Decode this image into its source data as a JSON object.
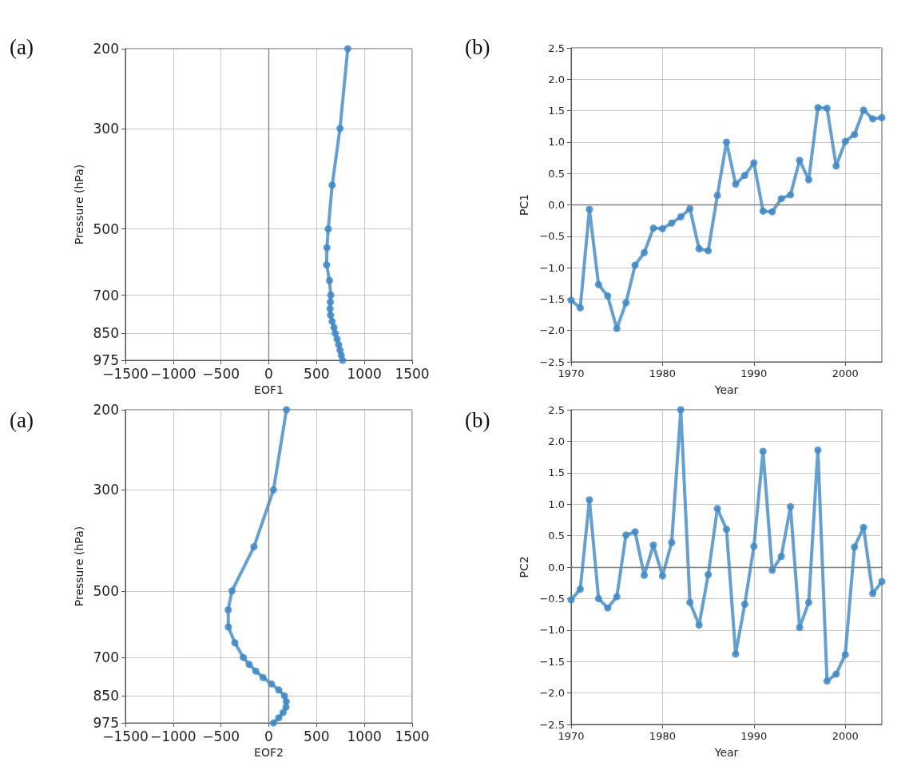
{
  "chart_data": [
    {
      "type": "line",
      "xlabel": "EOF1",
      "ylabel": "Pressure (hPa)",
      "annotations": [
        "(a)"
      ],
      "log": "y",
      "grid": true,
      "marker": "circle",
      "line_style": "solid",
      "xlim": [
        -1500,
        1500
      ],
      "xticks": [
        {
          "value": -1500,
          "label": "−1500"
        },
        {
          "value": -1000,
          "label": "−1000"
        },
        {
          "value": -500,
          "label": "−500"
        },
        0,
        500,
        1000,
        1500
      ],
      "ylim": [
        975,
        200
      ],
      "yticks": [
        200,
        300,
        500,
        700,
        850,
        975
      ],
      "ref_lines": [
        {
          "axis": "x",
          "value": 0,
          "color": "#808080"
        }
      ],
      "series": [
        {
          "color": "#3f88c5",
          "x": [
            826,
            745,
            663,
            622,
            608,
            605,
            635,
            649,
            644,
            641,
            646,
            663,
            682,
            695,
            714,
            731,
            745,
            758,
            772
          ],
          "values": [
            200,
            300,
            400,
            500,
            550,
            600,
            650,
            700,
            725,
            750,
            775,
            800,
            825,
            850,
            875,
            900,
            925,
            950,
            975
          ]
        }
      ]
    },
    {
      "type": "line",
      "xlabel": "Year",
      "ylabel": "PC1",
      "annotations": [
        "(b)"
      ],
      "grid": true,
      "marker": "circle",
      "line_style": "solid",
      "xlim": [
        1970,
        2004
      ],
      "xticks": [
        1970,
        1980,
        1990,
        2000
      ],
      "ylim": [
        -2.5,
        2.5
      ],
      "yticks": [
        {
          "value": -2.5,
          "label": "−2.5"
        },
        {
          "value": -2,
          "label": "−2.0"
        },
        {
          "value": -1.5,
          "label": "−1.5"
        },
        {
          "value": -1,
          "label": "−1.0"
        },
        {
          "value": -0.5,
          "label": "−0.5"
        },
        {
          "value": 0,
          "label": "0.0"
        },
        {
          "value": 0.5,
          "label": "0.5"
        },
        {
          "value": 1,
          "label": "1.0"
        },
        {
          "value": 1.5,
          "label": "1.5"
        },
        {
          "value": 2,
          "label": "2.0"
        },
        {
          "value": 2.5,
          "label": "2.5"
        }
      ],
      "ref_lines": [
        {
          "axis": "y",
          "value": 0,
          "color": "#808080"
        }
      ],
      "series": [
        {
          "color": "#3f88c5",
          "x": [
            1970,
            1971,
            1972,
            1973,
            1974,
            1975,
            1976,
            1977,
            1978,
            1979,
            1980,
            1981,
            1982,
            1983,
            1984,
            1985,
            1986,
            1987,
            1988,
            1989,
            1990,
            1991,
            1992,
            1993,
            1994,
            1995,
            1996,
            1997,
            1998,
            1999,
            2000,
            2001,
            2002,
            2003,
            2004
          ],
          "values": [
            -1.52,
            -1.64,
            -0.07,
            -1.27,
            -1.45,
            -1.97,
            -1.56,
            -0.96,
            -0.76,
            -0.37,
            -0.38,
            -0.29,
            -0.19,
            -0.06,
            -0.7,
            -0.73,
            0.15,
            1.0,
            0.33,
            0.47,
            0.67,
            -0.1,
            -0.11,
            0.1,
            0.16,
            0.71,
            0.4,
            1.55,
            1.54,
            0.62,
            1.01,
            1.12,
            1.51,
            1.37,
            1.39
          ]
        }
      ]
    },
    {
      "type": "line",
      "xlabel": "EOF2",
      "ylabel": "Pressure (hPa)",
      "annotations": [
        "(a)"
      ],
      "log": "y",
      "grid": true,
      "marker": "circle",
      "line_style": "solid",
      "xlim": [
        -1500,
        1500
      ],
      "xticks": [
        {
          "value": -1500,
          "label": "−1500"
        },
        {
          "value": -1000,
          "label": "−1000"
        },
        {
          "value": -500,
          "label": "−500"
        },
        0,
        500,
        1000,
        1500
      ],
      "ylim": [
        975,
        200
      ],
      "yticks": [
        200,
        300,
        500,
        700,
        850,
        975
      ],
      "ref_lines": [
        {
          "axis": "x",
          "value": 0,
          "color": "#808080"
        }
      ],
      "series": [
        {
          "color": "#3f88c5",
          "x": [
            185,
            49,
            -155,
            -385,
            -425,
            -423,
            -355,
            -267,
            -205,
            -136,
            -60,
            27,
            104,
            164,
            183,
            180,
            150,
            104,
            49
          ],
          "values": [
            200,
            300,
            400,
            500,
            550,
            600,
            650,
            700,
            725,
            750,
            775,
            800,
            825,
            850,
            875,
            900,
            925,
            950,
            975
          ]
        }
      ]
    },
    {
      "type": "line",
      "xlabel": "Year",
      "ylabel": "PC2",
      "annotations": [
        "(b)"
      ],
      "grid": true,
      "marker": "circle",
      "line_style": "solid",
      "xlim": [
        1970,
        2004
      ],
      "xticks": [
        1970,
        1980,
        1990,
        2000
      ],
      "ylim": [
        -2.5,
        2.5
      ],
      "yticks": [
        {
          "value": -2.5,
          "label": "−2.5"
        },
        {
          "value": -2,
          "label": "−2.0"
        },
        {
          "value": -1.5,
          "label": "−1.5"
        },
        {
          "value": -1,
          "label": "−1.0"
        },
        {
          "value": -0.5,
          "label": "−0.5"
        },
        {
          "value": 0,
          "label": "0.0"
        },
        {
          "value": 0.5,
          "label": "0.5"
        },
        {
          "value": 1,
          "label": "1.0"
        },
        {
          "value": 1.5,
          "label": "1.5"
        },
        {
          "value": 2,
          "label": "2.0"
        },
        {
          "value": 2.5,
          "label": "2.5"
        }
      ],
      "ref_lines": [
        {
          "axis": "y",
          "value": 0,
          "color": "#808080"
        }
      ],
      "series": [
        {
          "color": "#3f88c5",
          "x": [
            1970,
            1971,
            1972,
            1973,
            1974,
            1975,
            1976,
            1977,
            1978,
            1979,
            1980,
            1981,
            1982,
            1983,
            1984,
            1985,
            1986,
            1987,
            1988,
            1989,
            1990,
            1991,
            1992,
            1993,
            1994,
            1995,
            1996,
            1997,
            1998,
            1999,
            2000,
            2001,
            2002,
            2003,
            2004
          ],
          "values": [
            -0.52,
            -0.35,
            1.07,
            -0.5,
            -0.65,
            -0.47,
            0.51,
            0.56,
            -0.13,
            0.35,
            -0.14,
            0.39,
            2.5,
            -0.56,
            -0.92,
            -0.12,
            0.93,
            0.6,
            -1.38,
            -0.59,
            0.33,
            1.84,
            -0.05,
            0.17,
            0.96,
            -0.96,
            -0.56,
            1.86,
            -1.81,
            -1.7,
            -1.39,
            0.32,
            0.63,
            -0.42,
            -0.23
          ]
        }
      ]
    }
  ]
}
